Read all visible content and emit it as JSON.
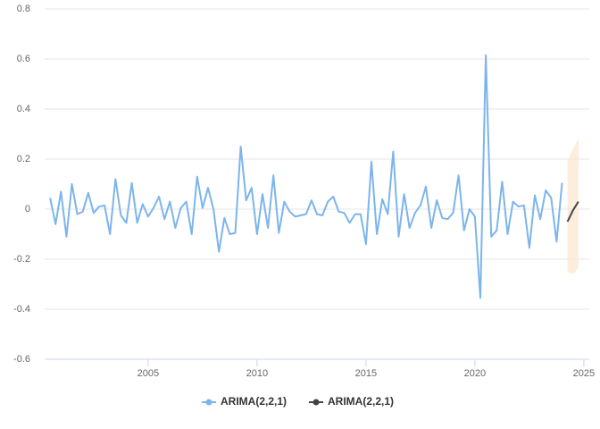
{
  "chart_data": {
    "type": "line",
    "x": [
      2000.5,
      2000.75,
      2001,
      2001.25,
      2001.5,
      2001.75,
      2002,
      2002.25,
      2002.5,
      2002.75,
      2003,
      2003.25,
      2003.5,
      2003.75,
      2004,
      2004.25,
      2004.5,
      2004.75,
      2005,
      2005.25,
      2005.5,
      2005.75,
      2006,
      2006.25,
      2006.5,
      2006.75,
      2007,
      2007.25,
      2007.5,
      2007.75,
      2008,
      2008.25,
      2008.5,
      2008.75,
      2009,
      2009.25,
      2009.5,
      2009.75,
      2010,
      2010.25,
      2010.5,
      2010.75,
      2011,
      2011.25,
      2011.5,
      2011.75,
      2012,
      2012.25,
      2012.5,
      2012.75,
      2013,
      2013.25,
      2013.5,
      2013.75,
      2014,
      2014.25,
      2014.5,
      2014.75,
      2015,
      2015.25,
      2015.5,
      2015.75,
      2016,
      2016.25,
      2016.5,
      2016.75,
      2017,
      2017.25,
      2017.5,
      2017.75,
      2018,
      2018.25,
      2018.5,
      2018.75,
      2019,
      2019.25,
      2019.5,
      2019.75,
      2020,
      2020.25,
      2020.5,
      2020.75,
      2021,
      2021.25,
      2021.5,
      2021.75,
      2022,
      2022.25,
      2022.5,
      2022.75,
      2023,
      2023.25,
      2023.5,
      2023.75,
      2024
    ],
    "series": [
      {
        "name": "ARIMA(2,2,1)",
        "color": "#7cb5ec",
        "values": [
          0.045,
          -0.06,
          0.07,
          -0.11,
          0.1,
          -0.02,
          -0.01,
          0.065,
          -0.015,
          0.01,
          0.015,
          -0.1,
          0.12,
          -0.025,
          -0.055,
          0.105,
          -0.055,
          0.02,
          -0.03,
          0.005,
          0.05,
          -0.04,
          0.03,
          -0.075,
          0.005,
          0.03,
          -0.1,
          0.13,
          0.005,
          0.085,
          0,
          -0.17,
          -0.035,
          -0.1,
          -0.095,
          0.25,
          0.035,
          0.085,
          -0.1,
          0.06,
          -0.075,
          0.135,
          -0.095,
          0.03,
          -0.01,
          -0.03,
          -0.025,
          -0.02,
          0.035,
          -0.02,
          -0.025,
          0.03,
          0.05,
          -0.01,
          -0.015,
          -0.055,
          -0.02,
          -0.02,
          -0.14,
          0.19,
          -0.1,
          0.04,
          -0.02,
          0.23,
          -0.11,
          0.06,
          -0.075,
          -0.015,
          0.015,
          0.09,
          -0.075,
          0.035,
          -0.035,
          -0.04,
          -0.015,
          0.135,
          -0.085,
          0,
          -0.03,
          -0.355,
          0.615,
          -0.11,
          -0.085,
          0.11,
          -0.1,
          0.03,
          0.01,
          0.015,
          -0.155,
          0.055,
          -0.04,
          0.075,
          0.045,
          -0.13,
          0.105
        ]
      },
      {
        "name": "ARIMA(2,2,1)",
        "color": "#434348",
        "band_color": "#fbe9d4",
        "x": [
          2024.25,
          2024.5,
          2024.75
        ],
        "values": [
          -0.05,
          -0.005,
          0.03
        ],
        "upper": [
          0.19,
          0.24,
          0.28
        ],
        "lower": [
          -0.25,
          -0.26,
          -0.235
        ]
      }
    ],
    "xlim": [
      2000.25,
      2025.25
    ],
    "xticks": [
      2005,
      2010,
      2015,
      2020,
      2025
    ],
    "ylim": [
      -0.6,
      0.8
    ],
    "yticks": [
      -0.6,
      -0.4,
      -0.2,
      0,
      0.2,
      0.4,
      0.6,
      0.8
    ],
    "grid": true,
    "legend": "bottom"
  }
}
